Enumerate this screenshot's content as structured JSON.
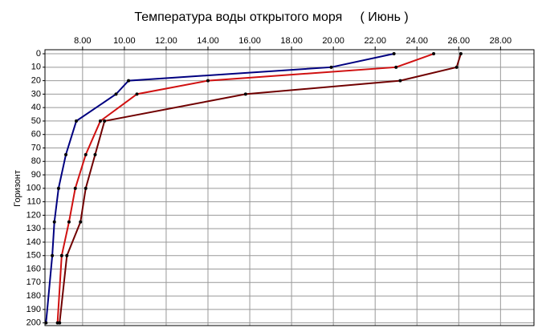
{
  "chart_data": {
    "type": "line",
    "title": "Температура воды открытого моря     ( Июнь )",
    "y_label": "Горизонт",
    "y": [
      0,
      10,
      20,
      30,
      50,
      75,
      100,
      125,
      150,
      200
    ],
    "series": [
      {
        "color": "#000080",
        "values": [
          22.9,
          19.9,
          10.2,
          9.6,
          7.7,
          7.2,
          6.85,
          6.65,
          6.55,
          6.25
        ]
      },
      {
        "color": "#d01010",
        "values": [
          24.8,
          23.0,
          14.0,
          10.6,
          8.85,
          8.15,
          7.65,
          7.35,
          7.0,
          6.8
        ]
      },
      {
        "color": "#700000",
        "values": [
          26.1,
          25.9,
          23.2,
          15.8,
          9.05,
          8.6,
          8.15,
          7.9,
          7.25,
          6.9
        ]
      }
    ],
    "xlim": [
      6.2,
      29.6
    ],
    "xticks": [
      {
        "value": 8,
        "label": "8.00"
      },
      {
        "value": 10,
        "label": "10.00"
      },
      {
        "value": 12,
        "label": "12.00"
      },
      {
        "value": 14,
        "label": "14.00"
      },
      {
        "value": 16,
        "label": "16.00"
      },
      {
        "value": 18,
        "label": "18.00"
      },
      {
        "value": 20,
        "label": "20.00"
      },
      {
        "value": 22,
        "label": "22.00"
      },
      {
        "value": 24,
        "label": "24.00"
      },
      {
        "value": 26,
        "label": "26.00"
      },
      {
        "value": 28,
        "label": "28.00"
      }
    ],
    "ylim": [
      -3,
      202
    ],
    "y_inverted": true,
    "yticks": [
      0,
      10,
      20,
      30,
      40,
      50,
      60,
      70,
      80,
      90,
      100,
      110,
      120,
      130,
      140,
      150,
      160,
      170,
      180,
      190,
      200
    ],
    "grid": true
  }
}
